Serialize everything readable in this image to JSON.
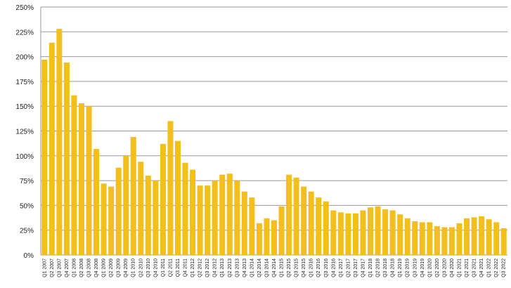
{
  "chart_data": {
    "type": "bar",
    "categories": [
      "Q1 2007",
      "Q2 2007",
      "Q3 2007",
      "Q4 2007",
      "Q1 2008",
      "Q2 2008",
      "Q3 2008",
      "Q4 2008",
      "Q1 2009",
      "Q2 2009",
      "Q3 2009",
      "Q4 2009",
      "Q1 2010",
      "Q2 2010",
      "Q3 2010",
      "Q4 2010",
      "Q1 2011",
      "Q2 2011",
      "Q3 2011",
      "Q4 2011",
      "Q1 2012",
      "Q2 2012",
      "Q3 2012",
      "Q4 2012",
      "Q1 2013",
      "Q2 2013",
      "Q3 2013",
      "Q4 2013",
      "Q1 2014",
      "Q2 2014",
      "Q3 2014",
      "Q4 2014",
      "Q1 2015",
      "Q2 2015",
      "Q3 2015",
      "Q4 2015",
      "Q1 2016",
      "Q2 2016",
      "Q3 2016",
      "Q4 2016",
      "Q1 2017",
      "Q2 2017",
      "Q3 2017",
      "Q4 2017",
      "Q1 2018",
      "Q2 2018",
      "Q3 2018",
      "Q4 2018",
      "Q1 2019",
      "Q2 2019",
      "Q3 2019",
      "Q4 2019",
      "Q1 2020",
      "Q2 2020",
      "Q3 2020",
      "Q4 2020",
      "Q1 2021",
      "Q2 2021",
      "Q3 2021",
      "Q4 2021",
      "Q1 2022",
      "Q2 2022",
      "Q3 2022"
    ],
    "values": [
      197,
      214,
      228,
      194,
      161,
      153,
      150,
      107,
      72,
      69,
      88,
      100,
      119,
      94,
      80,
      75,
      112,
      135,
      115,
      93,
      86,
      70,
      70,
      75,
      81,
      82,
      75,
      64,
      58,
      32,
      37,
      35,
      49,
      81,
      78,
      69,
      64,
      58,
      54,
      45,
      43,
      42,
      42,
      45,
      48,
      49,
      46,
      45,
      41,
      37,
      34,
      33,
      33,
      29,
      28,
      28,
      32,
      37,
      38,
      39,
      36,
      33,
      27
    ],
    "color": "#f2bf1d",
    "ylim": [
      0,
      250
    ],
    "yticks": [
      {
        "value": 0,
        "label": "0%"
      },
      {
        "value": 25,
        "label": "25%"
      },
      {
        "value": 50,
        "label": "50%"
      },
      {
        "value": 75,
        "label": "75%"
      },
      {
        "value": 100,
        "label": "100%"
      },
      {
        "value": 125,
        "label": "125%"
      },
      {
        "value": 150,
        "label": "150%"
      },
      {
        "value": 175,
        "label": "175%"
      },
      {
        "value": 200,
        "label": "200%"
      },
      {
        "value": 225,
        "label": "225%"
      },
      {
        "value": 250,
        "label": "250%"
      }
    ],
    "grid": true
  }
}
